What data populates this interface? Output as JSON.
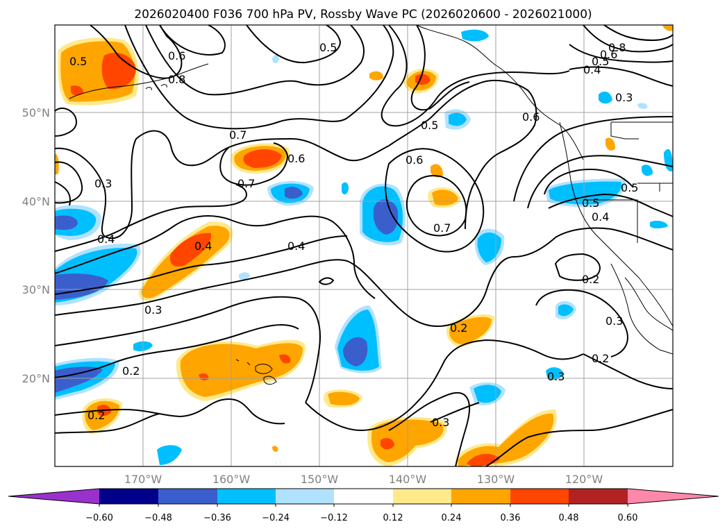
{
  "title": "2026020400 F036 700 hPa PV, Rossby Wave PC (2026020600 - 2026021000)",
  "lat_labels": [
    "50°N",
    "40°N",
    "30°N",
    "20°N"
  ],
  "lon_labels": [
    "170°W",
    "160°W",
    "150°W",
    "140°W",
    "130°W",
    "120°W"
  ],
  "colorbar": {
    "ticks": [
      "−0.60",
      "−0.48",
      "−0.36",
      "−0.24",
      "−0.12",
      "0.12",
      "0.24",
      "0.36",
      "0.48",
      "0.60"
    ],
    "colors": [
      "#9932cc",
      "#00008b",
      "#3a5fcd",
      "#00bfff",
      "#b0e2ff",
      "#ffffff",
      "#ffe98a",
      "#ffa500",
      "#ff4500",
      "#b22222",
      "#ff88aa"
    ]
  },
  "contour_labels": [
    "0.5",
    "0.6",
    "0.8",
    "0.5",
    "0.8",
    "0.6",
    "0.5",
    "0.4",
    "0.3",
    "0.7",
    "0.7",
    "0.6",
    "0.5",
    "0.6",
    "0.3",
    "0.4",
    "0.4",
    "0.7",
    "0.5",
    "0.4",
    "0.3",
    "0.4",
    "0.2",
    "0.2",
    "0.3",
    "0.2",
    "0.2",
    "0.3",
    "0.3",
    "0.2",
    "0.5",
    "0.6"
  ]
}
